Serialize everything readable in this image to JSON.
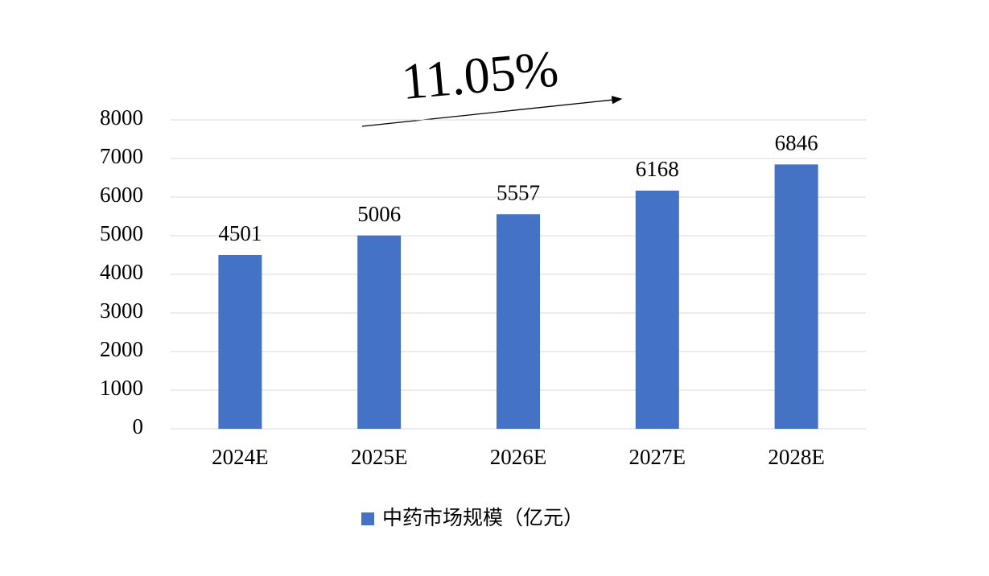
{
  "chart_data": {
    "type": "bar",
    "categories": [
      "2024E",
      "2025E",
      "2026E",
      "2027E",
      "2028E"
    ],
    "series": [
      {
        "name": "中药市场规模（亿元）",
        "color": "#4472c4",
        "values": [
          4501,
          5006,
          5557,
          6168,
          6846
        ]
      }
    ],
    "ylim": [
      0,
      8000
    ],
    "yticks": [
      0,
      1000,
      2000,
      3000,
      4000,
      5000,
      6000,
      7000,
      8000
    ],
    "grid": true,
    "legend": "bottom",
    "annotation": "11.05%"
  }
}
